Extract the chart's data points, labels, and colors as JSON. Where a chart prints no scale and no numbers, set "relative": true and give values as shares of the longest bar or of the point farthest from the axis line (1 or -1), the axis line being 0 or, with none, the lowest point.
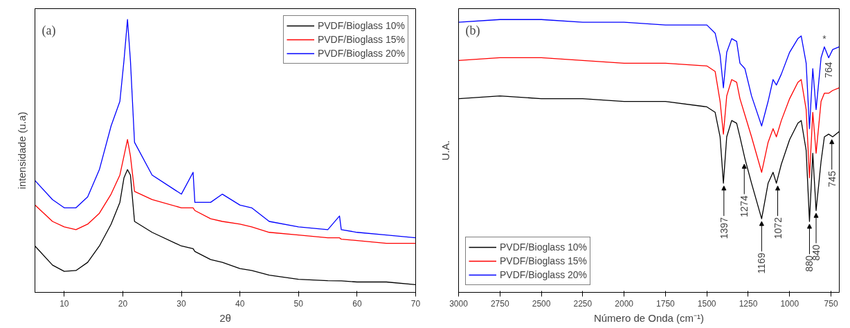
{
  "chart_data": [
    {
      "type": "line",
      "relative": true,
      "xlabel": "2θ",
      "ylabel": "intensidade (u.a)",
      "annotations": [
        "(a)"
      ],
      "xlim": [
        5,
        70
      ],
      "xticks": [
        10,
        20,
        30,
        40,
        50,
        60,
        70
      ],
      "grid": false,
      "legend": "top right",
      "marker": "none",
      "line_style": "solid",
      "x": [
        5,
        8,
        10,
        12,
        14,
        16,
        18,
        19.5,
        20.2,
        20.8,
        21.3,
        22,
        25,
        30,
        32,
        32.3,
        35,
        37,
        40,
        42,
        45,
        50,
        55,
        57,
        57.3,
        60,
        65,
        70
      ],
      "series": [
        {
          "name": "PVDF/Bioglass 10%",
          "color": "#000000",
          "values": [
            0.17,
            0.1,
            0.077,
            0.08,
            0.11,
            0.17,
            0.25,
            0.33,
            0.42,
            0.45,
            0.43,
            0.26,
            0.22,
            0.17,
            0.16,
            0.15,
            0.12,
            0.11,
            0.087,
            0.08,
            0.063,
            0.048,
            0.043,
            0.042,
            0.042,
            0.038,
            0.038,
            0.028
          ]
        },
        {
          "name": "PVDF/Bioglass 15%",
          "color": "#ff0000",
          "values": [
            0.32,
            0.26,
            0.24,
            0.23,
            0.25,
            0.29,
            0.36,
            0.43,
            0.5,
            0.56,
            0.5,
            0.37,
            0.34,
            0.31,
            0.31,
            0.3,
            0.27,
            0.26,
            0.25,
            0.24,
            0.22,
            0.21,
            0.2,
            0.2,
            0.195,
            0.19,
            0.18,
            0.18
          ]
        },
        {
          "name": "PVDF/Bioglass 20%",
          "color": "#0000ff",
          "values": [
            0.41,
            0.34,
            0.31,
            0.31,
            0.35,
            0.45,
            0.61,
            0.7,
            0.85,
            1.0,
            0.85,
            0.55,
            0.43,
            0.36,
            0.44,
            0.33,
            0.33,
            0.36,
            0.32,
            0.31,
            0.26,
            0.24,
            0.23,
            0.28,
            0.23,
            0.22,
            0.21,
            0.2
          ]
        }
      ]
    },
    {
      "type": "line",
      "relative": true,
      "xlabel": "Número de Onda (cm⁻¹)",
      "ylabel": "U.A.",
      "xlim": [
        3000,
        700
      ],
      "xticks": [
        3000,
        2750,
        2500,
        2250,
        2000,
        1750,
        1500,
        1250,
        1000,
        750
      ],
      "grid": false,
      "legend": "bottom left",
      "marker": "none",
      "line_style": "solid",
      "annotations": [
        "(b)",
        {
          "text": "1397",
          "x": 1397,
          "y": 0.4
        },
        {
          "text": "1274",
          "x": 1274,
          "y": 0.48
        },
        {
          "text": "1169",
          "x": 1169,
          "y": 0.27
        },
        {
          "text": "1072",
          "x": 1072,
          "y": 0.4
        },
        {
          "text": "880",
          "x": 880,
          "y": 0.26
        },
        {
          "text": "840",
          "x": 840,
          "y": 0.3
        },
        {
          "text": "745",
          "x": 745,
          "y": 0.57
        },
        {
          "text": "764",
          "x": 764,
          "y": 0.86
        },
        {
          "text": "*",
          "x": 790,
          "y": 0.9
        }
      ],
      "x": [
        3000,
        2750,
        2500,
        2250,
        2000,
        1750,
        1500,
        1450,
        1420,
        1400,
        1380,
        1350,
        1320,
        1300,
        1270,
        1230,
        1169,
        1130,
        1100,
        1080,
        1050,
        1000,
        950,
        930,
        900,
        880,
        860,
        840,
        810,
        790,
        764,
        740,
        700
      ],
      "series": [
        {
          "name": "PVDF/Bioglass 10%",
          "color": "#000000",
          "values": [
            0.71,
            0.72,
            0.71,
            0.71,
            0.7,
            0.7,
            0.68,
            0.66,
            0.57,
            0.4,
            0.57,
            0.63,
            0.62,
            0.57,
            0.49,
            0.4,
            0.27,
            0.4,
            0.44,
            0.4,
            0.47,
            0.56,
            0.62,
            0.63,
            0.52,
            0.26,
            0.51,
            0.3,
            0.48,
            0.57,
            0.58,
            0.57,
            0.59
          ]
        },
        {
          "name": "PVDF/Bioglass 15%",
          "color": "#ff0000",
          "values": [
            0.85,
            0.86,
            0.86,
            0.85,
            0.84,
            0.84,
            0.83,
            0.81,
            0.7,
            0.58,
            0.72,
            0.78,
            0.77,
            0.71,
            0.65,
            0.57,
            0.44,
            0.55,
            0.6,
            0.57,
            0.63,
            0.71,
            0.77,
            0.78,
            0.67,
            0.42,
            0.66,
            0.51,
            0.7,
            0.73,
            0.73,
            0.74,
            0.75
          ]
        },
        {
          "name": "PVDF/Bioglass 20%",
          "color": "#0000ff",
          "values": [
            0.99,
            1.0,
            1.0,
            0.99,
            0.99,
            0.98,
            0.98,
            0.95,
            0.87,
            0.75,
            0.88,
            0.93,
            0.92,
            0.84,
            0.82,
            0.72,
            0.61,
            0.7,
            0.78,
            0.76,
            0.8,
            0.88,
            0.93,
            0.94,
            0.84,
            0.6,
            0.82,
            0.67,
            0.86,
            0.9,
            0.86,
            0.89,
            0.9
          ]
        }
      ]
    }
  ]
}
